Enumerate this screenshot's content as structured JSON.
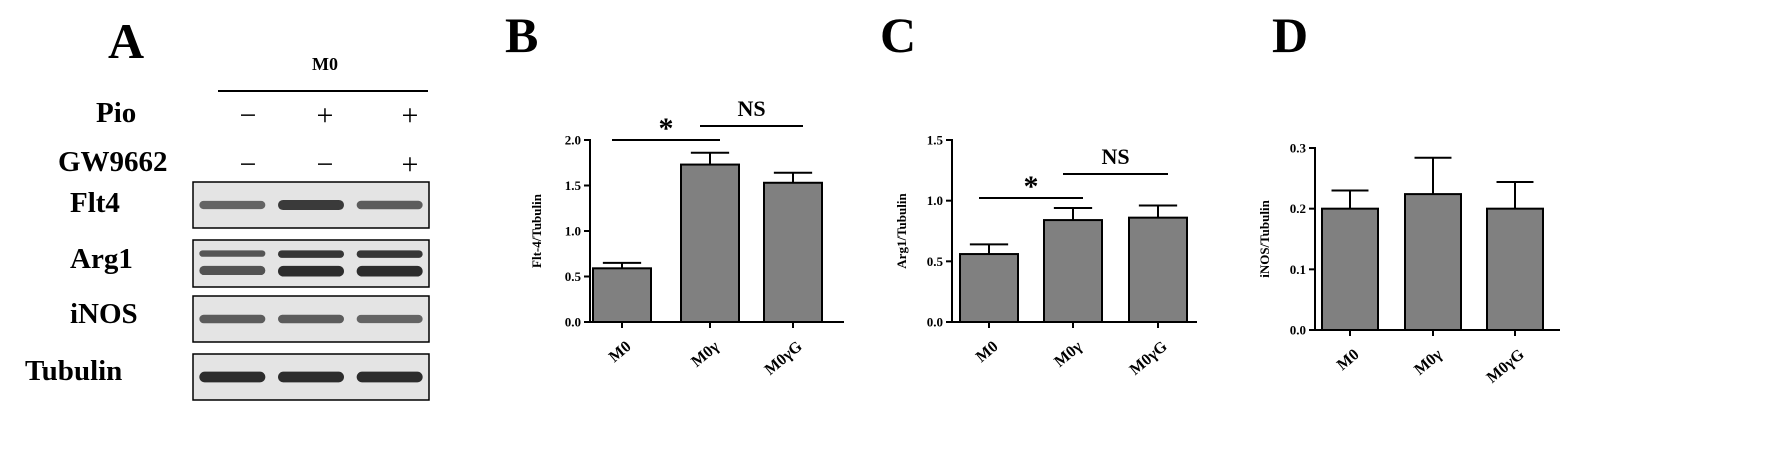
{
  "blot": {
    "panel": "A",
    "condition": "M0",
    "treatment_rows": [
      {
        "label": "Pio",
        "marks": [
          "−",
          "+",
          "+"
        ]
      },
      {
        "label": "GW9662",
        "marks": [
          "−",
          "−",
          "+"
        ]
      }
    ],
    "bands": [
      {
        "label": "Flt4",
        "intensities": [
          0.55,
          0.85,
          0.6
        ],
        "doublet": false
      },
      {
        "label": "Arg1",
        "intensities": [
          0.7,
          0.95,
          0.95
        ],
        "doublet": true
      },
      {
        "label": "iNOS",
        "intensities": [
          0.6,
          0.6,
          0.55
        ],
        "doublet": false
      },
      {
        "label": "Tubulin",
        "intensities": [
          0.95,
          0.95,
          0.95
        ],
        "doublet": false
      }
    ],
    "colors": {
      "band": "#1a1a1a",
      "blot_bg": "#e4e4e4"
    }
  },
  "chart_data": [
    {
      "panel": "B",
      "type": "bar",
      "categories": [
        "M0",
        "M0γ",
        "M0γG"
      ],
      "values": [
        0.59,
        1.73,
        1.53
      ],
      "errors": [
        0.06,
        0.13,
        0.11
      ],
      "ylabel": "Flt-4/Tubulin",
      "ylim": [
        0,
        2.0
      ],
      "yticks": [
        "0.0",
        "0.5",
        "1.0",
        "1.5",
        "2.0"
      ],
      "annotations": [
        {
          "label": "*",
          "from": 0,
          "to": 1
        },
        {
          "label": "NS",
          "from": 1,
          "to": 2
        }
      ]
    },
    {
      "panel": "C",
      "type": "bar",
      "categories": [
        "M0",
        "M0γ",
        "M0γG"
      ],
      "values": [
        0.56,
        0.84,
        0.86
      ],
      "errors": [
        0.08,
        0.1,
        0.1
      ],
      "ylabel": "Arg1/Tubulin",
      "ylim": [
        0,
        1.5
      ],
      "yticks": [
        "0.0",
        "0.5",
        "1.0",
        "1.5"
      ],
      "annotations": [
        {
          "label": "*",
          "from": 0,
          "to": 1
        },
        {
          "label": "NS",
          "from": 1,
          "to": 2
        }
      ]
    },
    {
      "panel": "D",
      "type": "bar",
      "categories": [
        "M0",
        "M0γ",
        "M0γG"
      ],
      "values": [
        0.2,
        0.224,
        0.2
      ],
      "errors": [
        0.03,
        0.06,
        0.044
      ],
      "ylabel": "iNOS/Tubulin",
      "ylim": [
        0,
        0.3
      ],
      "yticks": [
        "0.0",
        "0.1",
        "0.2",
        "0.3"
      ],
      "annotations": []
    }
  ],
  "colors": {
    "bar": "#808080",
    "axis": "#000000"
  }
}
